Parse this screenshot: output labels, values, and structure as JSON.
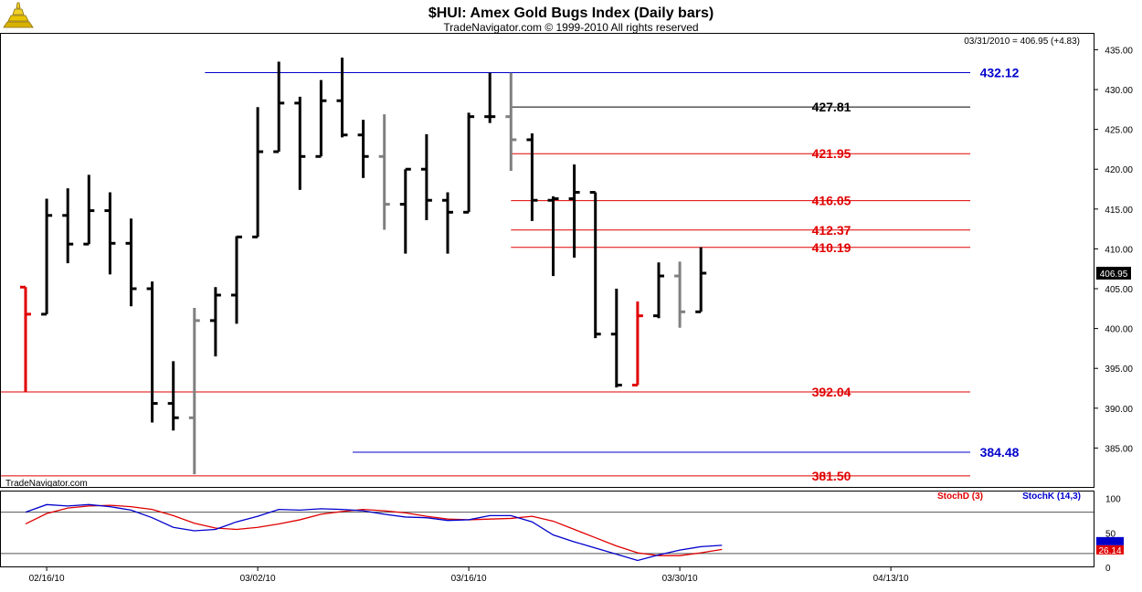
{
  "header": {
    "title": "$HUI:  Amex Gold Bugs Index  (Daily bars)",
    "subtitle": "TradeNavigator.com © 1999-2010 All rights reserved",
    "last_quote": "03/31/2010 = 406.95 (+4.83)",
    "watermark": "TradeNavigator.com",
    "logo_icon": "gold-bars-logo-icon"
  },
  "chart_data": [
    {
      "type": "ohlc",
      "title": "$HUI:  Amex Gold Bugs Index  (Daily bars)",
      "ylim": [
        380,
        437
      ],
      "y_ticks": [
        385,
        390,
        395,
        400,
        405,
        410,
        415,
        420,
        425,
        430,
        435
      ],
      "y_tick_labels": [
        "385.00",
        "390.00",
        "395.00",
        "400.00",
        "405.00",
        "410.00",
        "415.00",
        "420.00",
        "425.00",
        "430.00",
        "435.00"
      ],
      "x_tick_labels": [
        "02/16/10",
        "03/02/10",
        "03/16/10",
        "03/30/10",
        "04/13/10"
      ],
      "x_tick_bar_index": [
        1,
        11,
        21,
        31,
        41
      ],
      "last_price_label": "406.95",
      "bars": [
        {
          "o": 405.2,
          "h": 405.2,
          "l": 392.1,
          "c": 401.8,
          "color": "#e00000"
        },
        {
          "o": 401.8,
          "h": 416.3,
          "l": 401.8,
          "c": 414.2,
          "color": "#000000"
        },
        {
          "o": 414.2,
          "h": 417.6,
          "l": 408.2,
          "c": 410.6,
          "color": "#000000"
        },
        {
          "o": 410.6,
          "h": 419.3,
          "l": 410.6,
          "c": 414.8,
          "color": "#000000"
        },
        {
          "o": 414.8,
          "h": 417.1,
          "l": 406.8,
          "c": 410.7,
          "color": "#000000"
        },
        {
          "o": 410.7,
          "h": 413.8,
          "l": 402.8,
          "c": 405.0,
          "color": "#000000"
        },
        {
          "o": 405.0,
          "h": 405.9,
          "l": 388.2,
          "c": 390.6,
          "color": "#000000"
        },
        {
          "o": 390.6,
          "h": 395.9,
          "l": 387.2,
          "c": 388.8,
          "color": "#000000"
        },
        {
          "o": 388.8,
          "h": 402.6,
          "l": 381.7,
          "c": 401.0,
          "color": "#808080"
        },
        {
          "o": 401.0,
          "h": 405.2,
          "l": 396.5,
          "c": 404.2,
          "color": "#000000"
        },
        {
          "o": 404.2,
          "h": 411.6,
          "l": 400.6,
          "c": 411.5,
          "color": "#000000"
        },
        {
          "o": 411.5,
          "h": 427.8,
          "l": 411.5,
          "c": 422.2,
          "color": "#000000"
        },
        {
          "o": 422.2,
          "h": 433.5,
          "l": 422.2,
          "c": 428.3,
          "color": "#000000"
        },
        {
          "o": 428.3,
          "h": 429.1,
          "l": 417.4,
          "c": 421.6,
          "color": "#000000"
        },
        {
          "o": 421.6,
          "h": 431.2,
          "l": 421.6,
          "c": 428.6,
          "color": "#000000"
        },
        {
          "o": 428.6,
          "h": 434.0,
          "l": 424.0,
          "c": 424.3,
          "color": "#000000"
        },
        {
          "o": 424.3,
          "h": 426.2,
          "l": 418.9,
          "c": 421.6,
          "color": "#000000"
        },
        {
          "o": 421.6,
          "h": 426.9,
          "l": 412.4,
          "c": 415.6,
          "color": "#808080"
        },
        {
          "o": 415.6,
          "h": 420.0,
          "l": 409.4,
          "c": 420.0,
          "color": "#000000"
        },
        {
          "o": 420.0,
          "h": 424.4,
          "l": 413.6,
          "c": 416.1,
          "color": "#000000"
        },
        {
          "o": 416.1,
          "h": 417.1,
          "l": 409.4,
          "c": 414.6,
          "color": "#000000"
        },
        {
          "o": 414.6,
          "h": 427.1,
          "l": 414.6,
          "c": 426.6,
          "color": "#000000"
        },
        {
          "o": 426.6,
          "h": 432.1,
          "l": 425.8,
          "c": 426.6,
          "color": "#000000"
        },
        {
          "o": 426.6,
          "h": 432.1,
          "l": 419.8,
          "c": 423.7,
          "color": "#808080"
        },
        {
          "o": 423.7,
          "h": 424.5,
          "l": 413.5,
          "c": 416.1,
          "color": "#000000"
        },
        {
          "o": 416.1,
          "h": 416.6,
          "l": 406.6,
          "c": 416.3,
          "color": "#000000"
        },
        {
          "o": 416.3,
          "h": 420.6,
          "l": 408.9,
          "c": 417.1,
          "color": "#000000"
        },
        {
          "o": 417.1,
          "h": 417.1,
          "l": 398.8,
          "c": 399.3,
          "color": "#000000"
        },
        {
          "o": 399.3,
          "h": 405.0,
          "l": 392.6,
          "c": 392.9,
          "color": "#000000"
        },
        {
          "o": 392.9,
          "h": 403.4,
          "l": 392.9,
          "c": 401.6,
          "color": "#e00000"
        },
        {
          "o": 401.6,
          "h": 408.3,
          "l": 401.3,
          "c": 406.6,
          "color": "#000000"
        },
        {
          "o": 406.6,
          "h": 408.4,
          "l": 400.1,
          "c": 402.1,
          "color": "#808080"
        },
        {
          "o": 402.1,
          "h": 410.2,
          "l": 402.1,
          "c": 406.95,
          "color": "#000000"
        }
      ],
      "levels": [
        {
          "value": 432.12,
          "label": "432.12",
          "color": "#0000cc",
          "start_bar": 8.5
        },
        {
          "value": 427.81,
          "label": "427.81",
          "color": "#000000",
          "start_bar": 23
        },
        {
          "value": 421.95,
          "label": "421.95",
          "color": "#e00000",
          "start_bar": 23
        },
        {
          "value": 416.05,
          "label": "416.05",
          "color": "#e00000",
          "start_bar": 23
        },
        {
          "value": 412.37,
          "label": "412.37",
          "color": "#e00000",
          "start_bar": 23
        },
        {
          "value": 410.19,
          "label": "410.19",
          "color": "#e00000",
          "start_bar": 23
        },
        {
          "value": 392.04,
          "label": "392.04",
          "color": "#e00000",
          "start_bar": -1.2
        },
        {
          "value": 384.48,
          "label": "384.48",
          "color": "#0000cc",
          "start_bar": 15.5
        },
        {
          "value": 381.5,
          "label": "381.50",
          "color": "#e00000",
          "start_bar": -1.2
        }
      ]
    },
    {
      "type": "line",
      "title": "",
      "ylim": [
        0,
        110
      ],
      "y_ticks": [
        0,
        50,
        100
      ],
      "y_tick_labels": [
        "0",
        "50",
        "100"
      ],
      "ref_lines": [
        80,
        20
      ],
      "badge_value": "26.14",
      "series": [
        {
          "name": "StochD (3)",
          "color": "#e00000",
          "values": [
            63,
            78,
            86,
            89,
            90,
            88,
            84,
            75,
            64,
            57,
            55,
            58,
            63,
            69,
            77,
            81,
            84,
            82,
            79,
            74,
            70,
            69,
            70,
            71,
            74,
            67,
            55,
            43,
            31,
            21,
            17,
            17,
            21,
            26
          ]
        },
        {
          "name": "StochK (14,3)",
          "color": "#0000cc",
          "values": [
            80,
            91,
            89,
            91,
            88,
            83,
            72,
            58,
            53,
            55,
            66,
            74,
            84,
            83,
            85,
            84,
            82,
            77,
            73,
            72,
            68,
            69,
            75,
            75,
            66,
            47,
            37,
            28,
            19,
            10,
            18,
            25,
            30,
            32
          ]
        }
      ]
    }
  ]
}
